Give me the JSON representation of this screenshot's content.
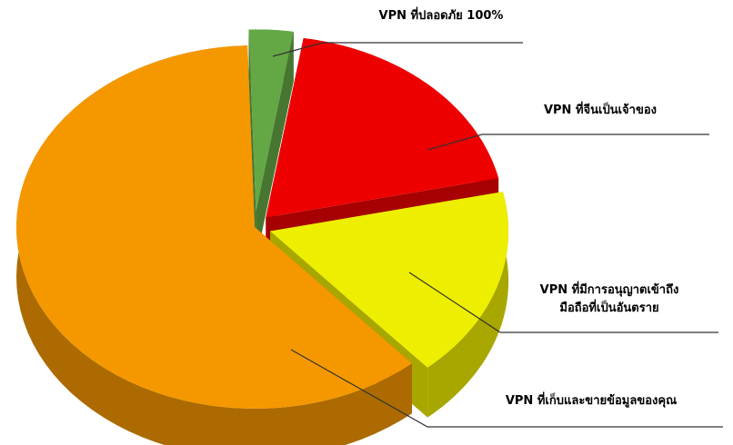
{
  "chart_data": {
    "type": "pie",
    "categories": [
      "VPN ที่ปลอดภัย 100%",
      "VPN ที่จีนเป็นเจ้าของ",
      "VPN ที่มีการอนุญาตเข้าถึง\nมือถือที่เป็นอันตราย",
      "VPN ที่เก็บและขายข้อมูลของคุณ"
    ],
    "values": [
      3,
      19,
      17,
      61
    ],
    "colors": [
      "#64a845",
      "#ee0000",
      "#eeee00",
      "#f59800"
    ]
  }
}
